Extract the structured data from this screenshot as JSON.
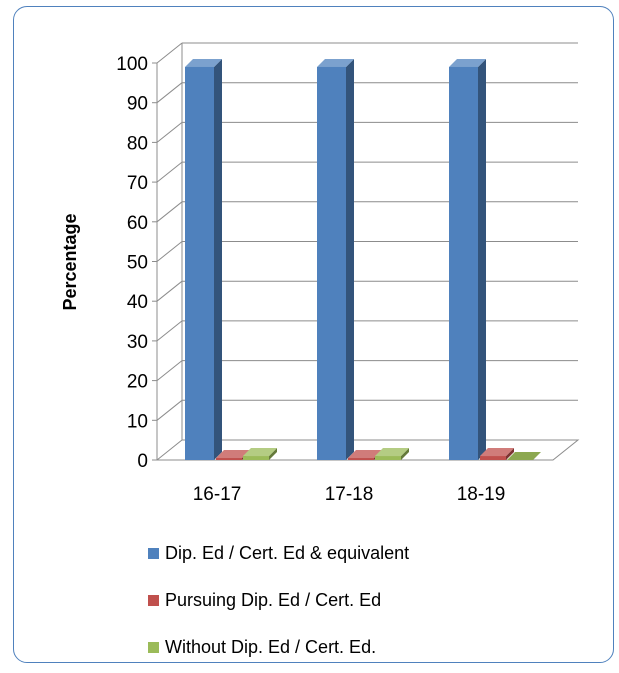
{
  "chart_data": {
    "type": "bar",
    "title": "",
    "xlabel": "",
    "ylabel": "Percentage",
    "ylim": [
      0,
      100
    ],
    "yticks": [
      0,
      10,
      20,
      30,
      40,
      50,
      60,
      70,
      80,
      90,
      100
    ],
    "grid": true,
    "style": "3d-clustered-column",
    "legend_position": "bottom",
    "categories": [
      "16-17",
      "17-18",
      "18-19"
    ],
    "series": [
      {
        "name": "Dip. Ed / Cert. Ed & equivalent",
        "values": [
          99,
          99,
          99
        ],
        "color": "#4f81bd"
      },
      {
        "name": "Pursuing Dip. Ed / Cert. Ed",
        "values": [
          0.5,
          0.5,
          1
        ],
        "color": "#c0504d"
      },
      {
        "name": "Without Dip. Ed / Cert. Ed.",
        "values": [
          1,
          1,
          0
        ],
        "color": "#9bbb59"
      }
    ]
  }
}
